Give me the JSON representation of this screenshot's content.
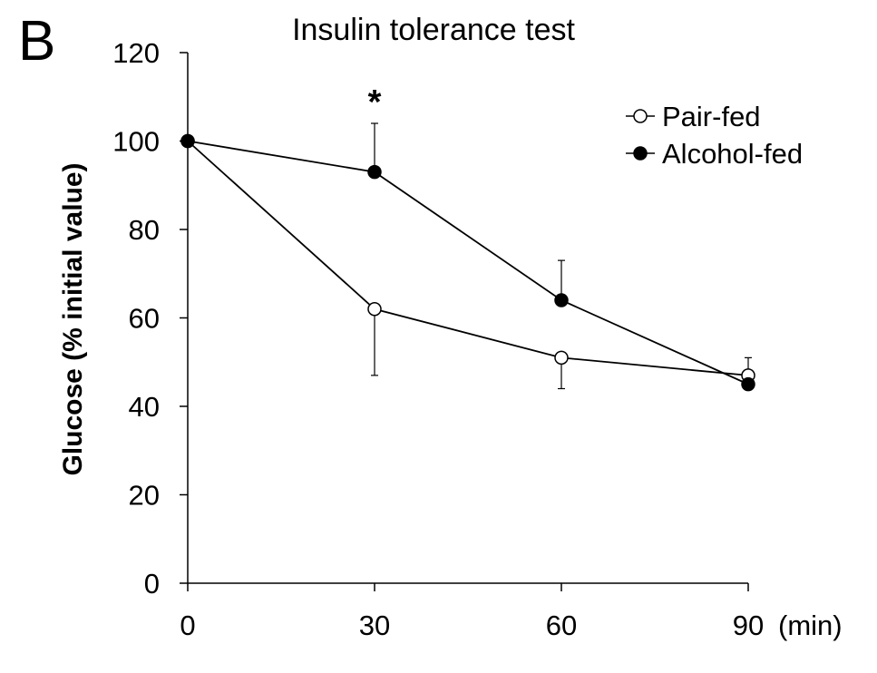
{
  "panel_label": "B",
  "chart_data": {
    "type": "line",
    "title": "Insulin tolerance test",
    "xlabel": "",
    "x_unit_label": "(min)",
    "ylabel": "Glucose (% initial value)",
    "x": [
      0,
      30,
      60,
      90
    ],
    "xlim": [
      0,
      90
    ],
    "ylim": [
      0,
      120
    ],
    "xticks": [
      0,
      30,
      60,
      90
    ],
    "yticks": [
      0,
      20,
      40,
      60,
      80,
      100,
      120
    ],
    "grid": false,
    "legend_position": "top-right",
    "series": [
      {
        "name": "Pair-fed",
        "marker": "open-circle",
        "values": [
          100,
          62,
          51,
          47
        ],
        "error_up": [
          0,
          0,
          0,
          4
        ],
        "error_down": [
          0,
          15,
          7,
          0
        ]
      },
      {
        "name": "Alcohol-fed",
        "marker": "filled-circle",
        "values": [
          100,
          93,
          64,
          45
        ],
        "error_up": [
          0,
          11,
          9,
          0
        ],
        "error_down": [
          0,
          0,
          0,
          0
        ]
      }
    ],
    "annotations": [
      {
        "text": "*",
        "x": 30
      }
    ]
  }
}
